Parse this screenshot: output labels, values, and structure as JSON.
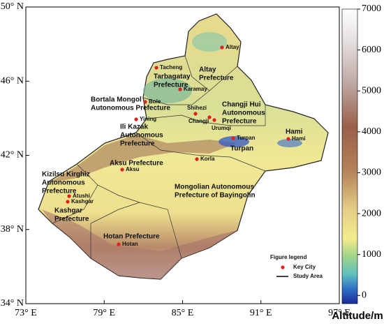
{
  "map": {
    "lon_ticks": [
      {
        "value": 73,
        "label": "73° E"
      },
      {
        "value": 79,
        "label": "79° E"
      },
      {
        "value": 85,
        "label": "85° E"
      },
      {
        "value": 91,
        "label": "91° E"
      },
      {
        "value": 97,
        "label": "97° E"
      }
    ],
    "lat_ticks": [
      {
        "value": 50,
        "label": "50° N"
      },
      {
        "value": 46,
        "label": "46° N"
      },
      {
        "value": 42,
        "label": "42° N"
      },
      {
        "value": 38,
        "label": "38° N"
      },
      {
        "value": 34,
        "label": "34° N"
      }
    ],
    "xlim": [
      73,
      97
    ],
    "ylim": [
      34,
      50
    ],
    "regions": [
      {
        "lines": [
          "Tarbagatay",
          "Prefecture"
        ]
      },
      {
        "lines": [
          "Altay",
          "Prefecture"
        ]
      },
      {
        "lines": [
          "Bortala Mongol",
          "Autonomous Prefecture"
        ]
      },
      {
        "lines": [
          "Changji Hui",
          "Autonomous",
          "Prefecture"
        ]
      },
      {
        "lines": [
          "Ili Kazak",
          "Autonomous",
          "Prefecture"
        ]
      },
      {
        "lines": [
          "Hami"
        ]
      },
      {
        "lines": [
          "Turpan"
        ]
      },
      {
        "lines": [
          "Aksu Prefecture"
        ]
      },
      {
        "lines": [
          "Kizilsu Kirghiz",
          "Autonomous",
          "Prefecture"
        ]
      },
      {
        "lines": [
          "Kashgar",
          "Prefecture"
        ]
      },
      {
        "lines": [
          "Mongolian Autonomous",
          "Prefecture of Bayingolin"
        ]
      },
      {
        "lines": [
          "Hotan Prefecture"
        ]
      }
    ],
    "cities": [
      "Altay",
      "Tacheng",
      "Karamay",
      "Bole",
      "Shihezi",
      "Changji",
      "Urumqi",
      "Yining",
      "Turpan",
      "Hami",
      "Korla",
      "Aksu",
      "Atushi",
      "Kashgar",
      "Hotan"
    ],
    "colorbar": {
      "label": "Altitude/m",
      "lim": [
        -200,
        7000
      ],
      "ticks": [
        0,
        1000,
        2000,
        3000,
        4000,
        5000,
        6000,
        7000
      ]
    },
    "legend": {
      "title": "Figure legend",
      "items": [
        "Key City",
        "Study Area"
      ]
    }
  }
}
